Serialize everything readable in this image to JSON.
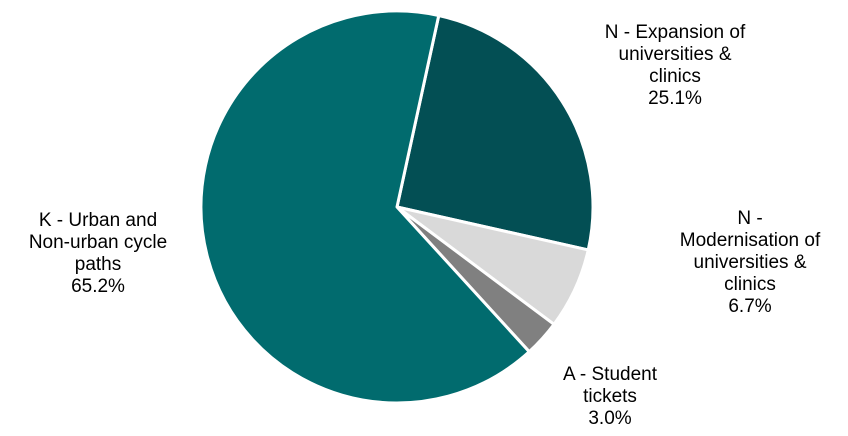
{
  "chart_data": {
    "type": "pie",
    "title": "",
    "slices": [
      {
        "label": "N - Expansion of universities & clinics",
        "label_lines": [
          "N - Expansion of",
          "universities &",
          "clinics"
        ],
        "value": 25.1,
        "value_text": "25.1%",
        "color": "#034f54"
      },
      {
        "label": "N - Modernisation of universities & clinics",
        "label_lines": [
          "N -",
          "Modernisation of",
          "universities &",
          "clinics"
        ],
        "value": 6.7,
        "value_text": "6.7%",
        "color": "#d9d9d9"
      },
      {
        "label": "A - Student tickets",
        "label_lines": [
          "A - Student",
          "tickets"
        ],
        "value": 3.0,
        "value_text": "3.0%",
        "color": "#808080"
      },
      {
        "label": "K - Urban and Non-urban cycle paths",
        "label_lines": [
          "K - Urban and",
          "Non-urban cycle",
          "paths"
        ],
        "value": 65.2,
        "value_text": "65.2%",
        "color": "#016b6e"
      }
    ]
  }
}
